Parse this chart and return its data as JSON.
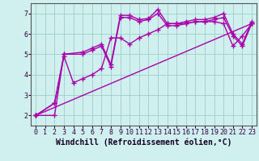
{
  "bg_color": "#cff0ee",
  "grid_color": "#9dcfca",
  "line_color": "#aa00aa",
  "marker": "+",
  "markersize": 4,
  "linewidth": 1.0,
  "xlabel": "Windchill (Refroidissement éolien,°C)",
  "xlabel_fontsize": 7,
  "ylim": [
    1.5,
    7.5
  ],
  "xlim": [
    -0.5,
    23.5
  ],
  "xticks": [
    0,
    1,
    2,
    3,
    4,
    5,
    6,
    7,
    8,
    9,
    10,
    11,
    12,
    13,
    14,
    15,
    16,
    17,
    18,
    19,
    20,
    21,
    22,
    23
  ],
  "yticks": [
    2,
    3,
    4,
    5,
    6,
    7
  ],
  "tick_fontsize": 6,
  "series": [
    {
      "x": [
        0,
        23
      ],
      "y": [
        2.0,
        6.5
      ]
    },
    {
      "x": [
        0,
        2,
        3,
        4,
        5,
        6,
        7,
        8,
        9,
        10,
        11,
        12,
        13,
        14,
        15,
        16,
        17,
        18,
        19,
        20,
        21,
        22,
        23
      ],
      "y": [
        2.0,
        2.6,
        4.9,
        3.6,
        3.8,
        4.0,
        4.3,
        5.8,
        5.8,
        5.5,
        5.8,
        6.0,
        6.2,
        6.5,
        6.5,
        6.5,
        6.6,
        6.6,
        6.6,
        6.5,
        5.4,
        5.9,
        6.5
      ]
    },
    {
      "x": [
        0,
        2,
        3,
        5,
        6,
        7,
        8,
        9,
        10,
        11,
        12,
        13,
        14,
        15,
        16,
        17,
        18,
        19,
        20,
        21,
        22,
        23
      ],
      "y": [
        2.0,
        2.0,
        5.0,
        5.1,
        5.3,
        5.5,
        4.5,
        6.9,
        6.9,
        6.7,
        6.75,
        7.2,
        6.5,
        6.5,
        6.6,
        6.7,
        6.7,
        6.8,
        7.0,
        6.0,
        5.5,
        6.6
      ]
    },
    {
      "x": [
        0,
        2,
        3,
        5,
        6,
        7,
        8,
        9,
        10,
        11,
        12,
        13,
        14,
        15,
        16,
        17,
        18,
        19,
        20,
        21,
        22,
        23
      ],
      "y": [
        2.0,
        2.6,
        5.0,
        5.0,
        5.2,
        5.4,
        4.4,
        6.8,
        6.8,
        6.6,
        6.7,
        7.0,
        6.4,
        6.4,
        6.5,
        6.6,
        6.6,
        6.7,
        6.8,
        5.9,
        5.4,
        6.5
      ]
    }
  ]
}
